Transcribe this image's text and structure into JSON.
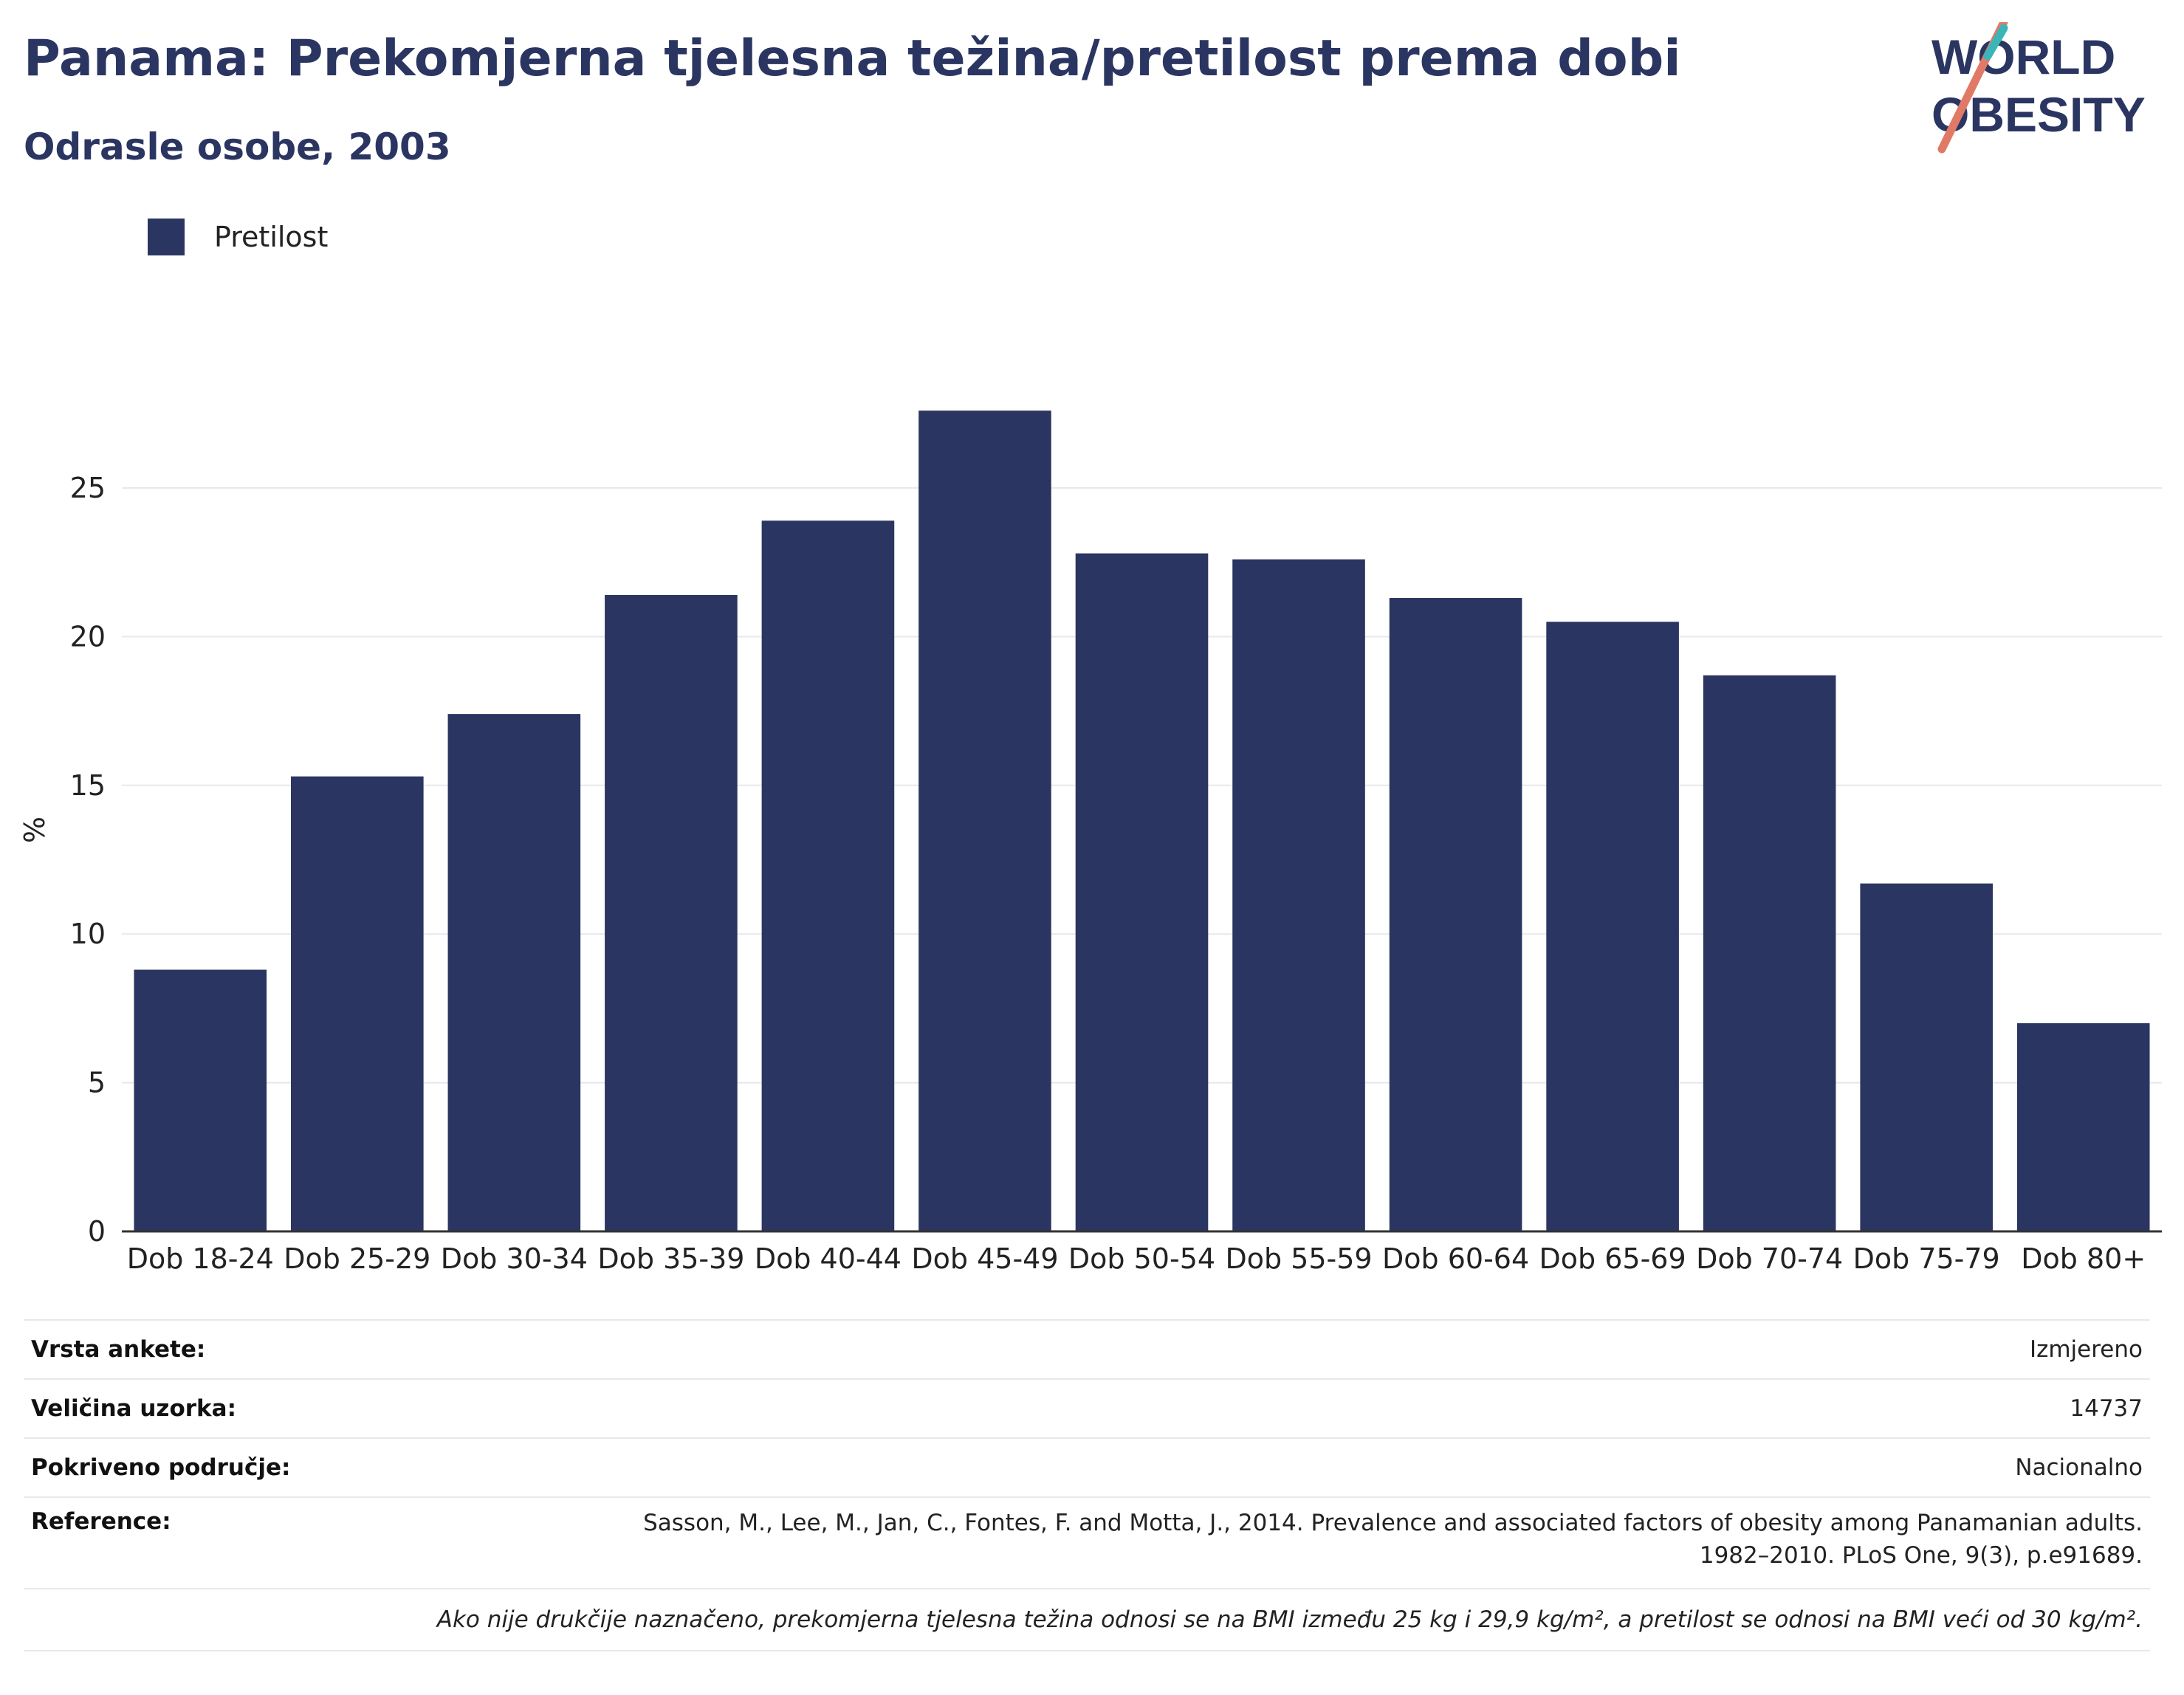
{
  "header": {
    "title": "Panama: Prekomjerna tjelesna težina/pretilost prema dobi",
    "subtitle": "Odrasle osobe, 2003"
  },
  "logo": {
    "line1": "WORLD",
    "line2": "OBESITY"
  },
  "legend": {
    "label": "Pretilost",
    "color": "#2b3561"
  },
  "chart_data": {
    "type": "bar",
    "categories": [
      "Dob 18-24",
      "Dob 25-29",
      "Dob 30-34",
      "Dob 35-39",
      "Dob 40-44",
      "Dob 45-49",
      "Dob 50-54",
      "Dob 55-59",
      "Dob 60-64",
      "Dob 65-69",
      "Dob 70-74",
      "Dob 75-79",
      "Dob 80+"
    ],
    "series": [
      {
        "name": "Pretilost",
        "color": "#2b3561",
        "values": [
          8.8,
          15.3,
          17.4,
          21.4,
          23.9,
          27.6,
          22.8,
          22.6,
          21.3,
          20.5,
          18.7,
          11.7,
          7.0
        ]
      }
    ],
    "ylabel": "%",
    "yticks": [
      0,
      5,
      10,
      15,
      20,
      25
    ],
    "ylim": [
      0,
      28.5
    ],
    "grid": true,
    "legend_position": "top-left"
  },
  "info": {
    "rows": [
      {
        "key": "Vrsta ankete:",
        "value": "Izmjereno"
      },
      {
        "key": "Veličina uzorka:",
        "value": "14737"
      },
      {
        "key": "Pokriveno područje:",
        "value": "Nacionalno"
      },
      {
        "key": "Reference:",
        "value_line1": "Sasson, M., Lee, M., Jan, C., Fontes, F. and Motta, J., 2014. Prevalence and associated factors of obesity among Panamanian adults.",
        "value_line2": "1982–2010. PLoS One, 9(3), p.e91689."
      }
    ],
    "note": "Ako nije drukčije naznačeno, prekomjerna tjelesna težina odnosi se na BMI između 25 kg i 29,9 kg/m², a pretilost se odnosi na BMI veći od 30 kg/m²."
  }
}
